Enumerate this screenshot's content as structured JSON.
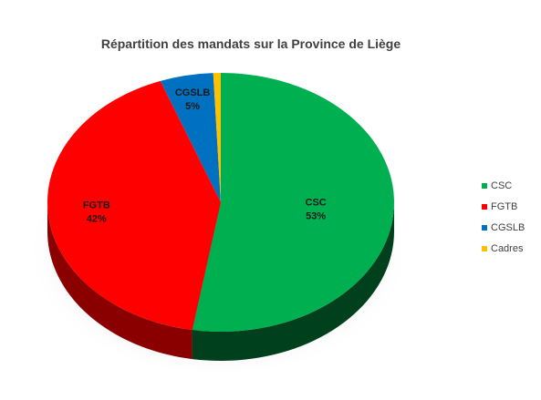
{
  "chart_data": {
    "type": "pie",
    "title": "Répartition des mandats sur la Province de Liège",
    "categories": [
      "CSC",
      "FGTB",
      "CGSLB",
      "Cadres"
    ],
    "values": [
      53,
      42,
      5,
      0.7
    ],
    "value_labels": [
      "53%",
      "42%",
      "5%",
      ""
    ],
    "colors": [
      "#00b050",
      "#ff0000",
      "#0070c0",
      "#ffc000"
    ],
    "side_colors": [
      "#00401c",
      "#8a0000",
      "#003a66",
      "#7a5c00"
    ],
    "legend_position": "right",
    "style": "3d"
  }
}
